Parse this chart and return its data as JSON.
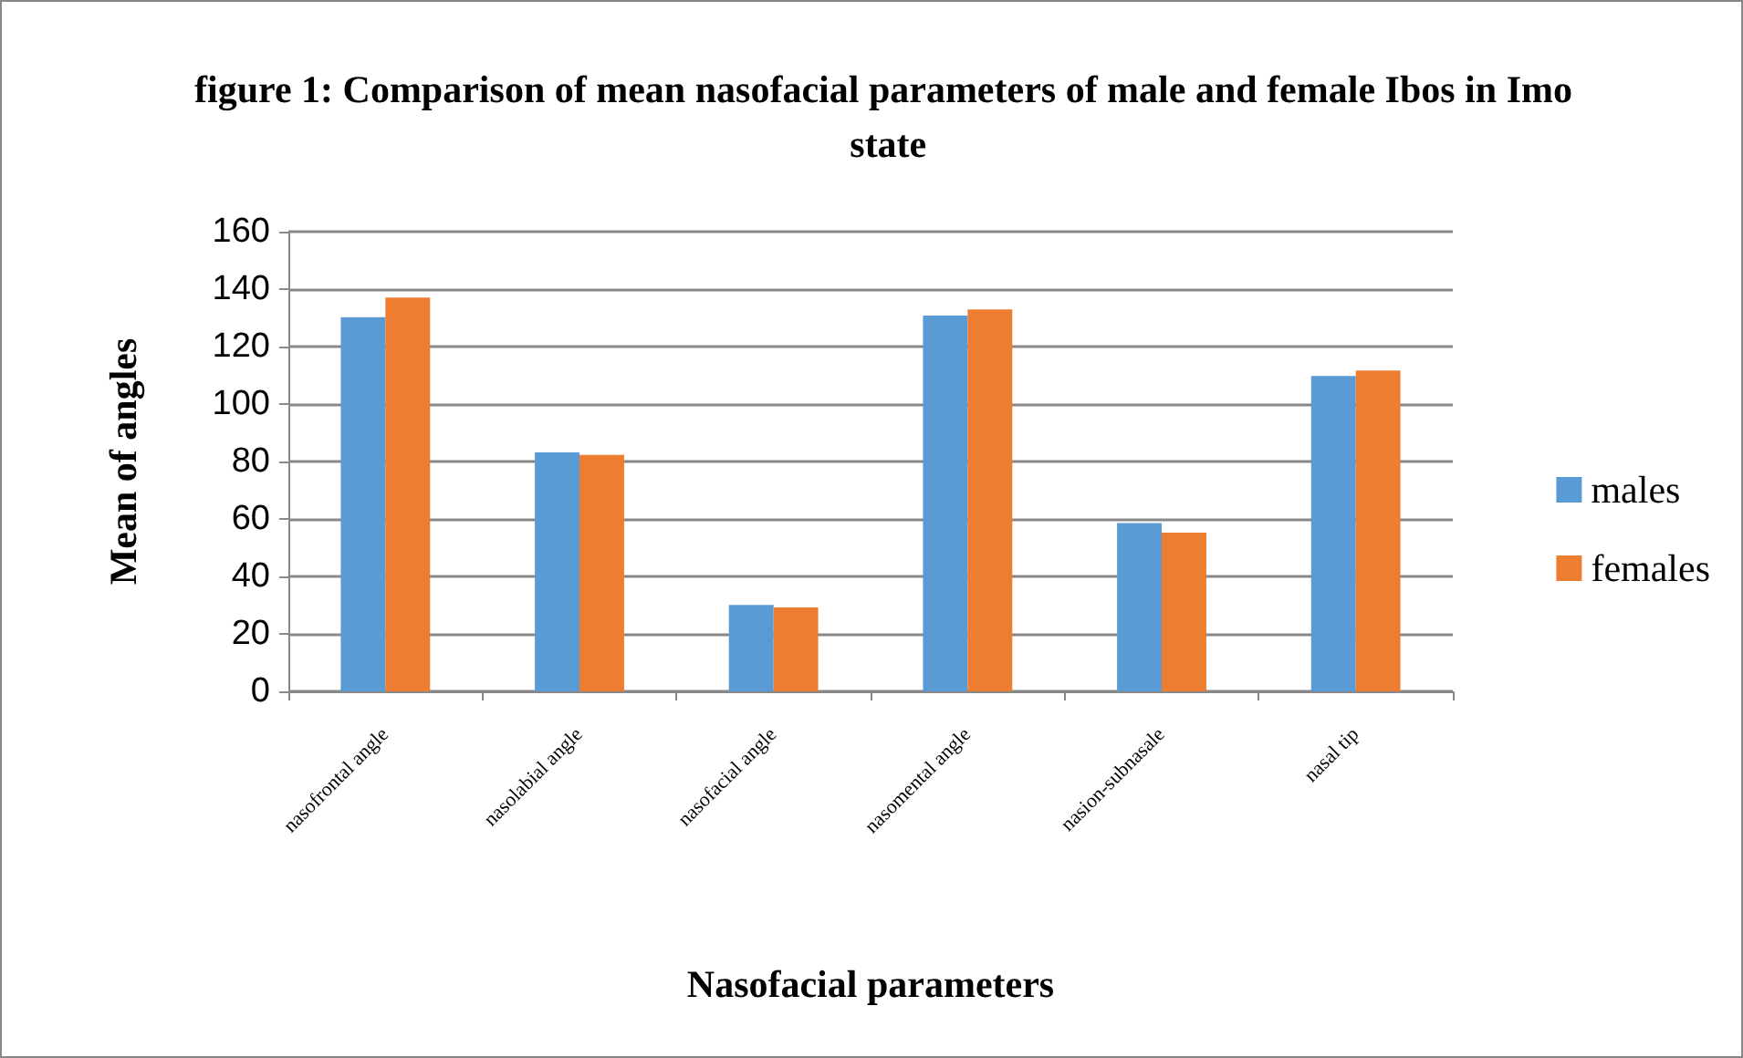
{
  "chart_data": {
    "type": "bar",
    "title": "figure 1: Comparison of mean nasofacial parameters of male and female Ibos in Imo state",
    "xlabel": "Nasofacial parameters",
    "ylabel": "Mean of angles",
    "categories": [
      "nasofrontal angle",
      "nasolabial angle",
      "nasofacial angle",
      "nasomental angle",
      "nasion-subnasale",
      "nasal tip"
    ],
    "series": [
      {
        "name": "males",
        "color": "#5b9bd5",
        "values": [
          130.2,
          83.2,
          30.1,
          130.8,
          58.6,
          109.8
        ]
      },
      {
        "name": "females",
        "color": "#ed7d31",
        "values": [
          137.1,
          82.3,
          29.2,
          132.9,
          55.2,
          111.7
        ]
      }
    ],
    "ylim": [
      0,
      160
    ],
    "yticks": [
      0,
      20,
      40,
      60,
      80,
      100,
      120,
      140,
      160
    ],
    "grid": "y",
    "legend": "right"
  }
}
